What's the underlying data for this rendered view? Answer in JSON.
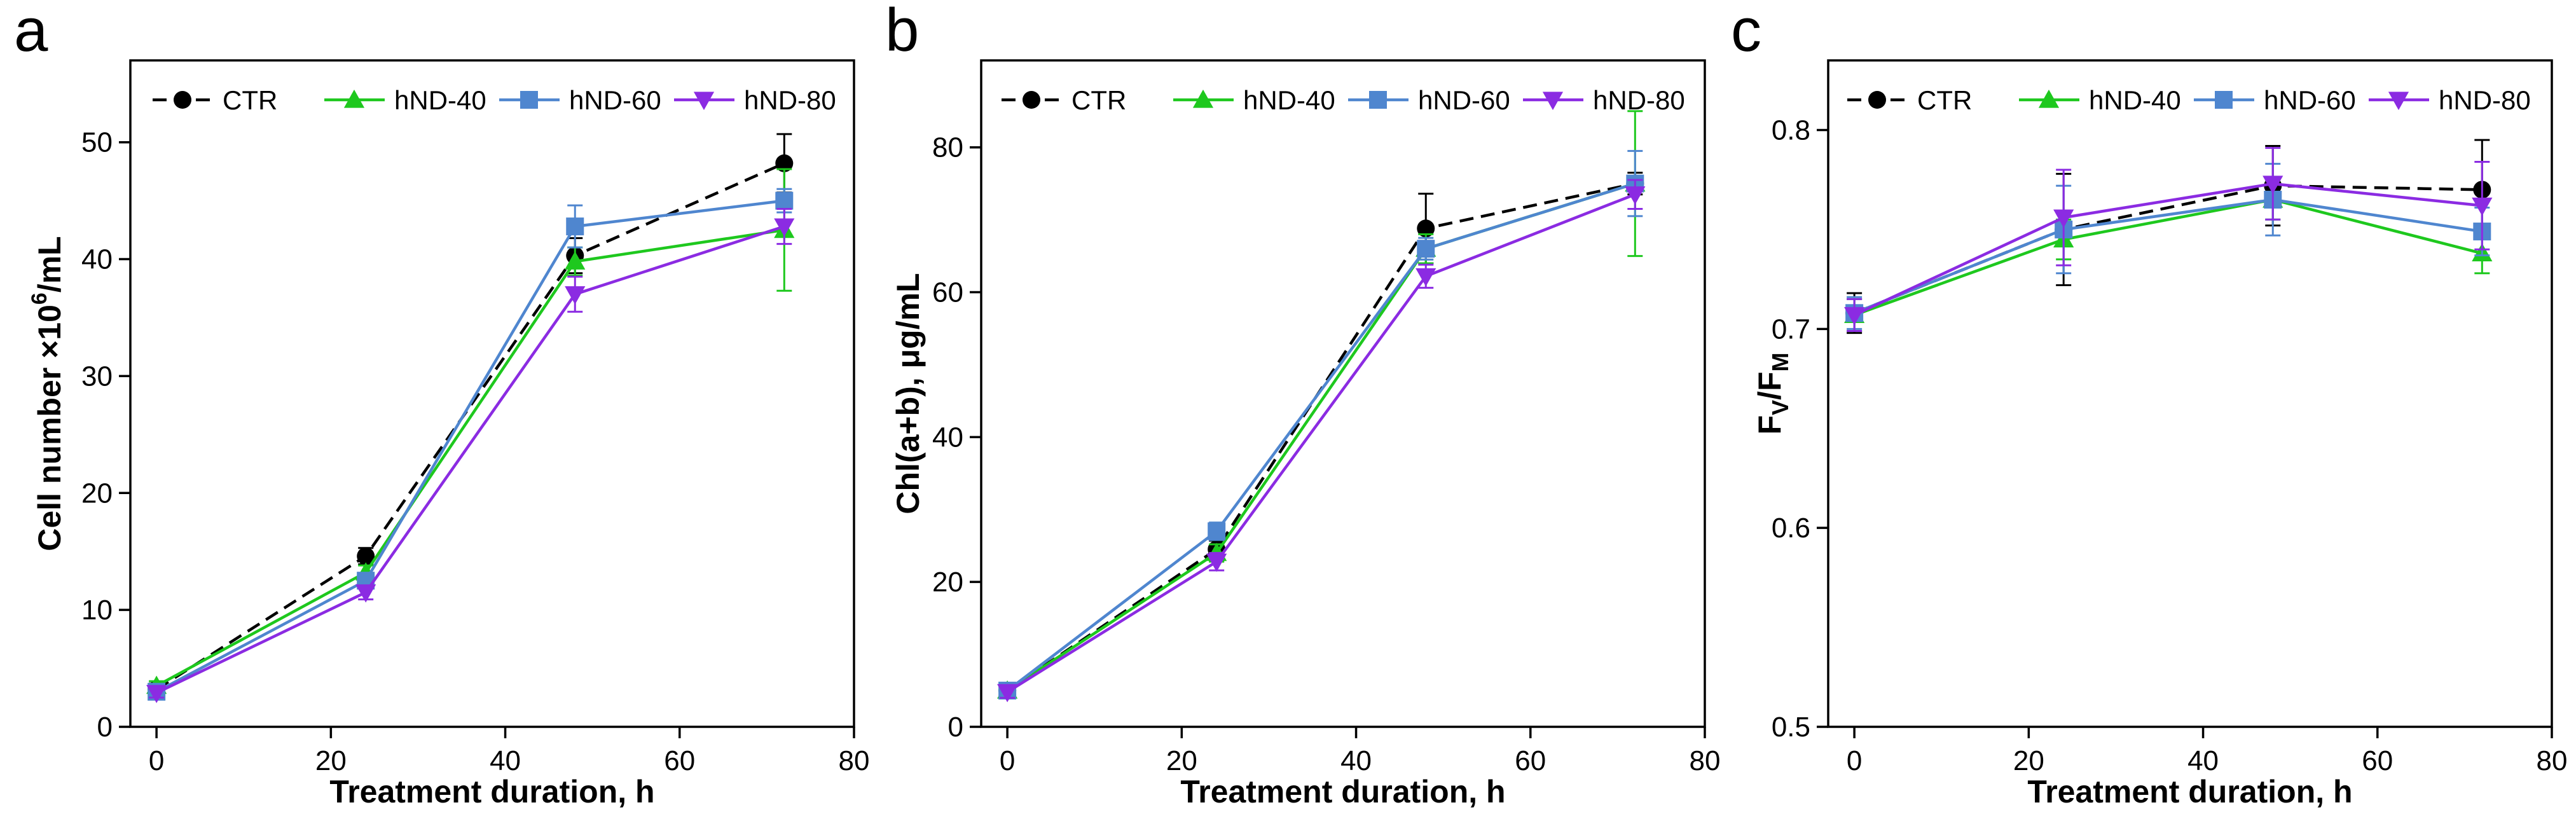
{
  "series_style": {
    "CTR": {
      "color": "#000000",
      "marker": "circle",
      "dash": "dashed"
    },
    "hND-40": {
      "color": "#1ec81e",
      "marker": "triangle",
      "dash": "solid"
    },
    "hND-60": {
      "color": "#4f86cf",
      "marker": "square",
      "dash": "solid"
    },
    "hND-80": {
      "color": "#8b2be2",
      "marker": "invtriangle",
      "dash": "solid"
    }
  },
  "chart_data": [
    {
      "type": "line",
      "panel": "a",
      "xlabel": "Treatment duration, h",
      "ylabel": "Cell number ×10⁶/mL",
      "ylabel_main": "Cell number ×10",
      "ylabel_sup": "6",
      "ylabel_tail": "/mL",
      "xlim": [
        -3,
        80
      ],
      "ylim": [
        0,
        57
      ],
      "xticks": [
        0,
        20,
        40,
        60,
        80
      ],
      "yticks": [
        0,
        10,
        20,
        30,
        40,
        50
      ],
      "x": [
        0,
        24,
        48,
        72
      ],
      "legend": [
        "CTR",
        "hND-40",
        "hND-60",
        "hND-80"
      ],
      "series": [
        {
          "name": "CTR",
          "values": [
            3.2,
            14.6,
            40.3,
            48.2
          ],
          "errors": [
            0.5,
            0.7,
            1.5,
            2.5
          ]
        },
        {
          "name": "hND-40",
          "values": [
            3.5,
            13.2,
            39.8,
            42.5
          ],
          "errors": [
            0.4,
            0.6,
            1.2,
            5.2
          ]
        },
        {
          "name": "hND-60",
          "values": [
            3.0,
            12.5,
            42.8,
            45.0
          ],
          "errors": [
            0.4,
            0.6,
            1.8,
            1.0
          ]
        },
        {
          "name": "hND-80",
          "values": [
            2.9,
            11.5,
            37.0,
            42.8
          ],
          "errors": [
            0.4,
            0.6,
            1.5,
            1.5
          ]
        }
      ]
    },
    {
      "type": "line",
      "panel": "b",
      "xlabel": "Treatment duration, h",
      "ylabel": "Chl(a+b), μg/mL",
      "xlim": [
        -3,
        80
      ],
      "ylim": [
        0,
        92
      ],
      "xticks": [
        0,
        20,
        40,
        60,
        80
      ],
      "yticks": [
        0,
        20,
        40,
        60,
        80
      ],
      "x": [
        0,
        24,
        48,
        72
      ],
      "legend": [
        "CTR",
        "hND-40",
        "hND-60",
        "hND-80"
      ],
      "series": [
        {
          "name": "CTR",
          "values": [
            5.0,
            24.5,
            68.8,
            75.0
          ],
          "errors": [
            0.8,
            1.2,
            4.8,
            1.5
          ]
        },
        {
          "name": "hND-40",
          "values": [
            5.0,
            24.0,
            66.0,
            75.0
          ],
          "errors": [
            0.8,
            1.2,
            2.0,
            10.0
          ]
        },
        {
          "name": "hND-60",
          "values": [
            5.0,
            27.0,
            66.0,
            75.0
          ],
          "errors": [
            0.8,
            1.2,
            1.5,
            4.5
          ]
        },
        {
          "name": "hND-80",
          "values": [
            4.8,
            22.8,
            62.2,
            73.5
          ],
          "errors": [
            0.8,
            1.2,
            1.6,
            2.0
          ]
        }
      ]
    },
    {
      "type": "line",
      "panel": "c",
      "xlabel": "Treatment duration, h",
      "ylabel": "FV/FM",
      "ylabel_F1": "F",
      "ylabel_sub1": "V",
      "ylabel_slash": "/F",
      "ylabel_sub2": "M",
      "xlim": [
        -3,
        80
      ],
      "ylim": [
        0.5,
        0.835
      ],
      "xticks": [
        0,
        20,
        40,
        60,
        80
      ],
      "yticks": [
        "0.5",
        "0.6",
        "0.7",
        "0.8"
      ],
      "x": [
        0,
        24,
        48,
        72
      ],
      "legend": [
        "CTR",
        "hND-40",
        "hND-60",
        "hND-80"
      ],
      "series": [
        {
          "name": "CTR",
          "values": [
            0.708,
            0.75,
            0.772,
            0.77
          ],
          "errors": [
            0.01,
            0.028,
            0.02,
            0.025
          ]
        },
        {
          "name": "hND-40",
          "values": [
            0.707,
            0.745,
            0.765,
            0.738
          ],
          "errors": [
            0.008,
            0.01,
            0.01,
            0.01
          ]
        },
        {
          "name": "hND-60",
          "values": [
            0.708,
            0.75,
            0.765,
            0.749
          ],
          "errors": [
            0.008,
            0.022,
            0.018,
            0.012
          ]
        },
        {
          "name": "hND-80",
          "values": [
            0.707,
            0.756,
            0.773,
            0.762
          ],
          "errors": [
            0.008,
            0.024,
            0.018,
            0.022
          ]
        }
      ]
    }
  ]
}
